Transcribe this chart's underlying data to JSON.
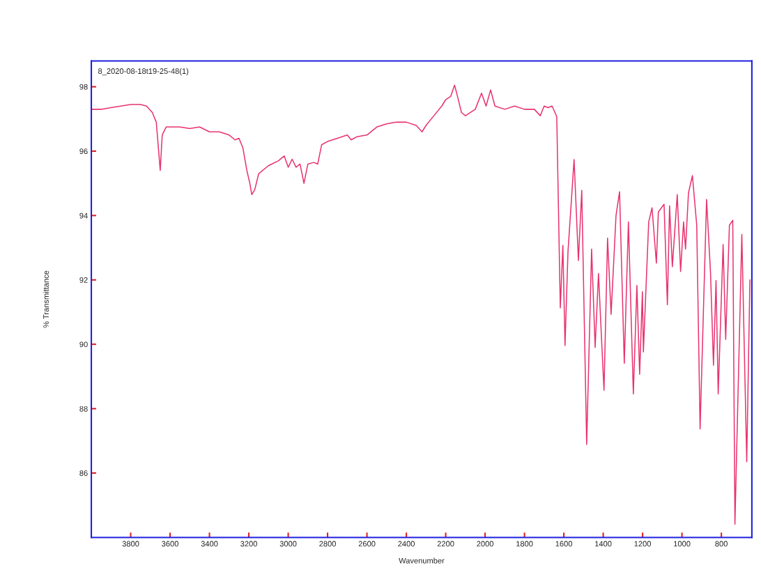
{
  "chart_data": {
    "type": "line",
    "xlabel": "Wavenumber",
    "ylabel": "% Transmittance",
    "annotations": [
      "8_2020-08-18t19-25-48(1)"
    ],
    "xlim": [
      4000,
      645
    ],
    "ylim": [
      84,
      98.8
    ],
    "xticks": [
      3800,
      3600,
      3400,
      3200,
      3000,
      2800,
      2600,
      2400,
      2200,
      2000,
      1800,
      1600,
      1400,
      1200,
      1000,
      800
    ],
    "yticks": [
      86,
      88,
      90,
      92,
      94,
      96,
      98
    ],
    "grid": false,
    "marker": "none",
    "line_style": "solid",
    "series": [
      {
        "color": "#e8336e",
        "x": [
          4000,
          3950,
          3900,
          3850,
          3800,
          3750,
          3720,
          3690,
          3670,
          3650,
          3640,
          3620,
          3550,
          3500,
          3450,
          3400,
          3350,
          3300,
          3270,
          3250,
          3230,
          3210,
          3195,
          3185,
          3170,
          3150,
          3100,
          3050,
          3020,
          3000,
          2980,
          2960,
          2940,
          2920,
          2900,
          2870,
          2850,
          2830,
          2800,
          2750,
          2700,
          2680,
          2650,
          2600,
          2550,
          2500,
          2450,
          2400,
          2350,
          2320,
          2300,
          2260,
          2220,
          2200,
          2175,
          2155,
          2140,
          2120,
          2100,
          2050,
          2018,
          1995,
          1972,
          1950,
          1900,
          1850,
          1800,
          1750,
          1720,
          1700,
          1680,
          1660,
          1645,
          1636,
          1618,
          1605,
          1594,
          1579,
          1548,
          1526,
          1509,
          1484,
          1459,
          1441,
          1424,
          1410,
          1396,
          1378,
          1360,
          1335,
          1317,
          1293,
          1272,
          1247,
          1229,
          1215,
          1201,
          1196,
          1169,
          1152,
          1130,
          1120,
          1091,
          1074,
          1063,
          1049,
          1024,
          1007,
          992,
          982,
          967,
          947,
          925,
          908,
          875,
          855,
          840,
          827,
          816,
          791,
          778,
          759,
          742,
          731,
          696,
          671,
          655
        ],
        "values": [
          97.3,
          97.3,
          97.35,
          97.4,
          97.45,
          97.45,
          97.4,
          97.2,
          96.9,
          95.4,
          96.5,
          96.75,
          96.75,
          96.7,
          96.75,
          96.6,
          96.6,
          96.5,
          96.35,
          96.4,
          96.1,
          95.4,
          95.0,
          94.65,
          94.8,
          95.3,
          95.55,
          95.7,
          95.85,
          95.5,
          95.75,
          95.5,
          95.6,
          95.0,
          95.6,
          95.65,
          95.6,
          96.2,
          96.3,
          96.4,
          96.5,
          96.35,
          96.45,
          96.5,
          96.75,
          96.85,
          96.9,
          96.9,
          96.8,
          96.6,
          96.8,
          97.1,
          97.4,
          97.6,
          97.7,
          98.05,
          97.7,
          97.2,
          97.1,
          97.3,
          97.8,
          97.4,
          97.9,
          97.4,
          97.3,
          97.4,
          97.3,
          97.3,
          97.1,
          97.4,
          97.35,
          97.4,
          97.2,
          97.07,
          91.13,
          93.07,
          89.96,
          92.87,
          95.74,
          92.6,
          94.78,
          86.89,
          92.96,
          89.9,
          92.2,
          90.35,
          88.57,
          93.3,
          90.93,
          94.0,
          94.74,
          89.41,
          93.8,
          88.46,
          91.83,
          89.07,
          91.63,
          89.76,
          93.8,
          94.24,
          92.52,
          94.11,
          94.35,
          91.23,
          94.3,
          92.41,
          94.65,
          92.26,
          93.8,
          92.96,
          94.7,
          95.24,
          93.7,
          87.37,
          94.5,
          92.22,
          89.35,
          91.98,
          88.46,
          93.1,
          90.15,
          93.7,
          93.85,
          84.41,
          93.41,
          86.35,
          92.0
        ]
      }
    ]
  }
}
